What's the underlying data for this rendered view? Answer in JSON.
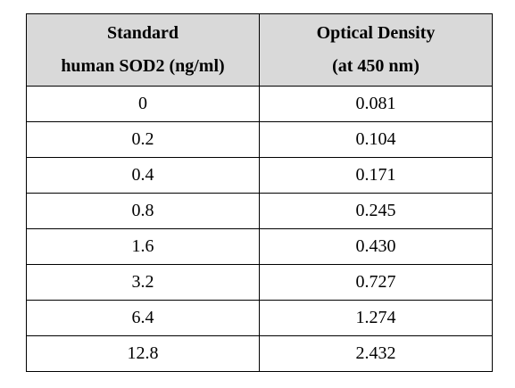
{
  "table": {
    "headers": [
      {
        "line1": "Standard",
        "line2": "human SOD2 (ng/ml)"
      },
      {
        "line1": "Optical Density",
        "line2": "(at 450 nm)"
      }
    ],
    "rows": [
      {
        "concentration": "0",
        "od": "0.081"
      },
      {
        "concentration": "0.2",
        "od": "0.104"
      },
      {
        "concentration": "0.4",
        "od": "0.171"
      },
      {
        "concentration": "0.8",
        "od": "0.245"
      },
      {
        "concentration": "1.6",
        "od": "0.430"
      },
      {
        "concentration": "3.2",
        "od": "0.727"
      },
      {
        "concentration": "6.4",
        "od": "1.274"
      },
      {
        "concentration": "12.8",
        "od": "2.432"
      }
    ]
  }
}
